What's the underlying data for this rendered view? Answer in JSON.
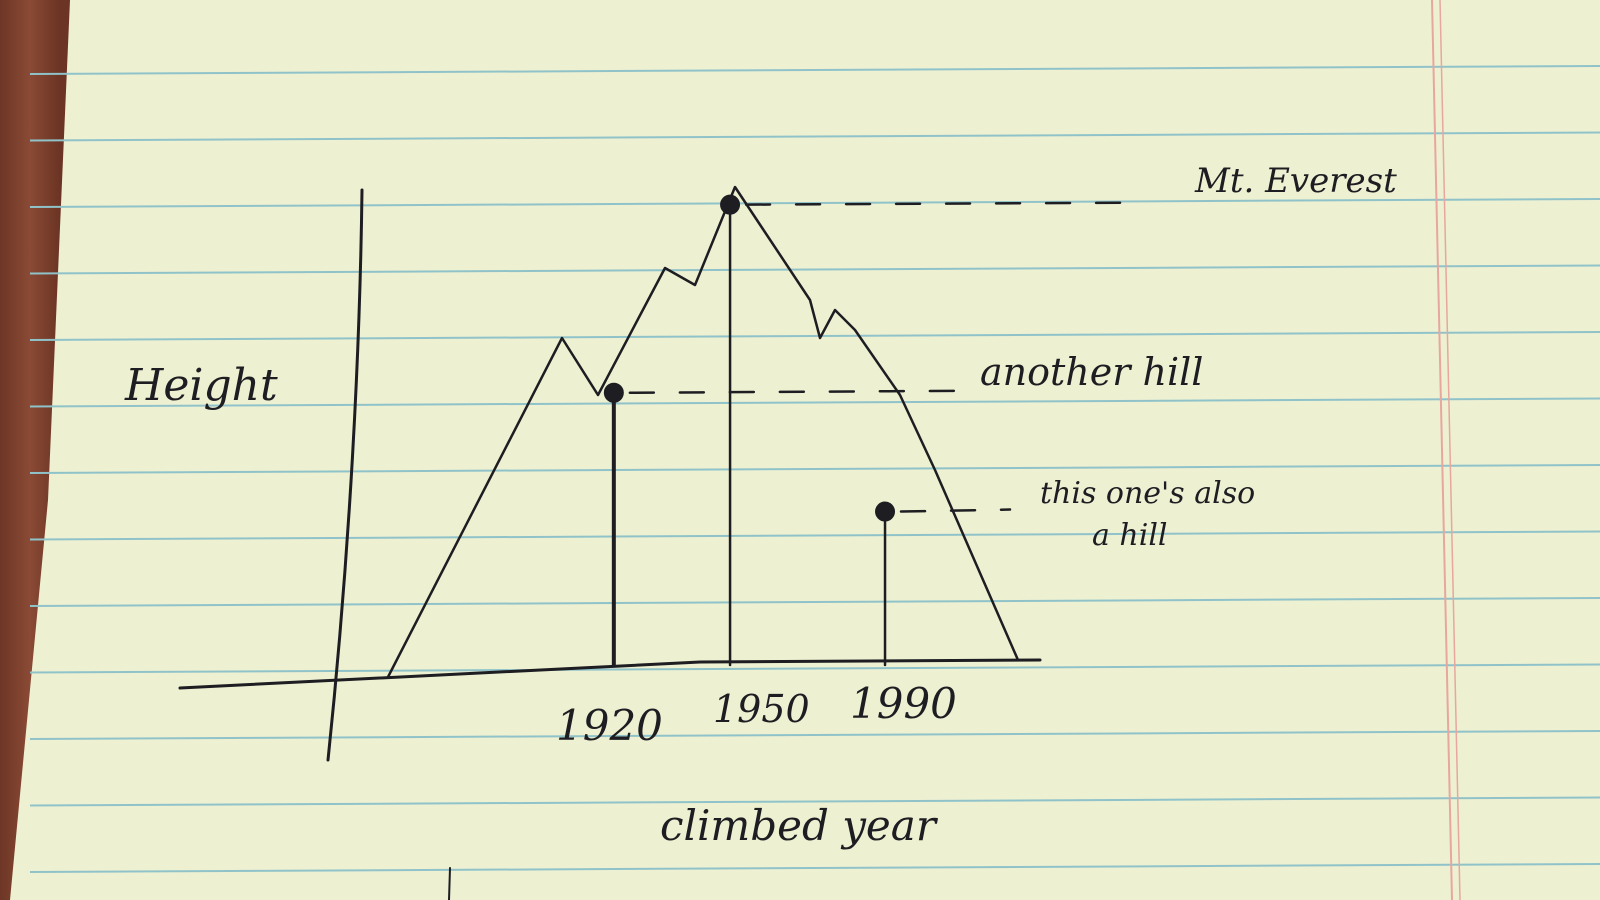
{
  "chart_data": {
    "type": "scatter",
    "title": "",
    "xlabel": "climbed year",
    "ylabel": "Height",
    "ticks": [
      "1920",
      "1950",
      "1990"
    ],
    "points": [
      {
        "x": 1920,
        "y": 0.55,
        "label": "another hill"
      },
      {
        "x": 1950,
        "y": 0.93,
        "label": "Mt. Everest"
      },
      {
        "x": 1990,
        "y": 0.31,
        "label": "this one's also a hill"
      }
    ],
    "xlim": [
      1855,
      2030
    ],
    "ylim": [
      0,
      1
    ]
  },
  "colors": {
    "paper": "#eef0d2",
    "rule_line": "#8fc3c9",
    "margin_line": "#e7a6a0",
    "ink": "#1d1d22"
  }
}
